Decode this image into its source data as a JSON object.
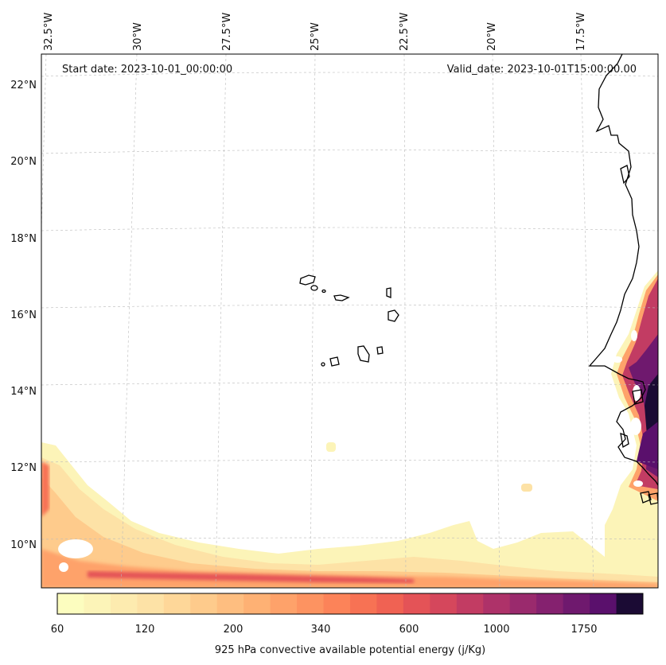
{
  "map": {
    "start_date": "Start date: 2023-10-01_00:00:00",
    "valid_date": "Valid_date: 2023-10-01T15:00:00.00",
    "lon_labels": [
      "32.5°W",
      "30°W",
      "27.5°W",
      "25°W",
      "22.5°W",
      "20°W",
      "17.5°W"
    ],
    "lat_labels": [
      "22°N",
      "20°N",
      "18°N",
      "16°N",
      "14°N",
      "12°N",
      "10°N"
    ],
    "grid": true
  },
  "colorbar": {
    "label": "925 hPa convective available potential energy (j/Kg)",
    "tick_labels": [
      "60",
      "120",
      "200",
      "340",
      "600",
      "1000",
      "1750"
    ],
    "colors": [
      "#fcfdbf",
      "#fcf4b8",
      "#fdebaf",
      "#fde2a6",
      "#fed799",
      "#fecb8c",
      "#febe80",
      "#feb174",
      "#fea26a",
      "#fd9361",
      "#fc8359",
      "#f77254",
      "#f06253",
      "#e45357",
      "#d5475c",
      "#c23c63",
      "#ae3269",
      "#9a2a6d",
      "#85216f",
      "#6f196e",
      "#5a106c",
      "#1b0b34"
    ]
  }
}
